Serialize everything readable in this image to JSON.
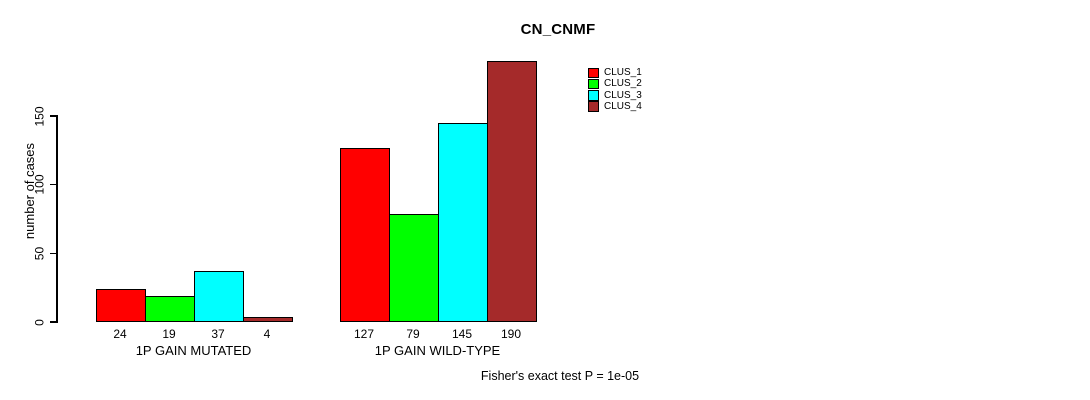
{
  "chart_data": {
    "type": "bar",
    "title": "CN_CNMF",
    "xlabel": "",
    "ylabel": "number of cases",
    "categories": [
      "1P GAIN MUTATED",
      "1P GAIN WILD-TYPE"
    ],
    "series": [
      {
        "name": "CLUS_1",
        "color": "#FF0000",
        "values": [
          24,
          127
        ]
      },
      {
        "name": "CLUS_2",
        "color": "#00FF00",
        "values": [
          19,
          79
        ]
      },
      {
        "name": "CLUS_3",
        "color": "#00FFFF",
        "values": [
          37,
          145
        ]
      },
      {
        "name": "CLUS_4",
        "color": "#A52A2A",
        "values": [
          4,
          190
        ]
      }
    ],
    "yticks": [
      0,
      50,
      100,
      150
    ],
    "ylim": [
      0,
      190
    ],
    "grid": false,
    "bar_value_labels": true,
    "legend_position": "top-right",
    "annotation": "Fisher's exact test P = 1e-05"
  },
  "colors": {
    "background": "#FFFFFF",
    "axis": "#000000",
    "text": "#000000"
  }
}
